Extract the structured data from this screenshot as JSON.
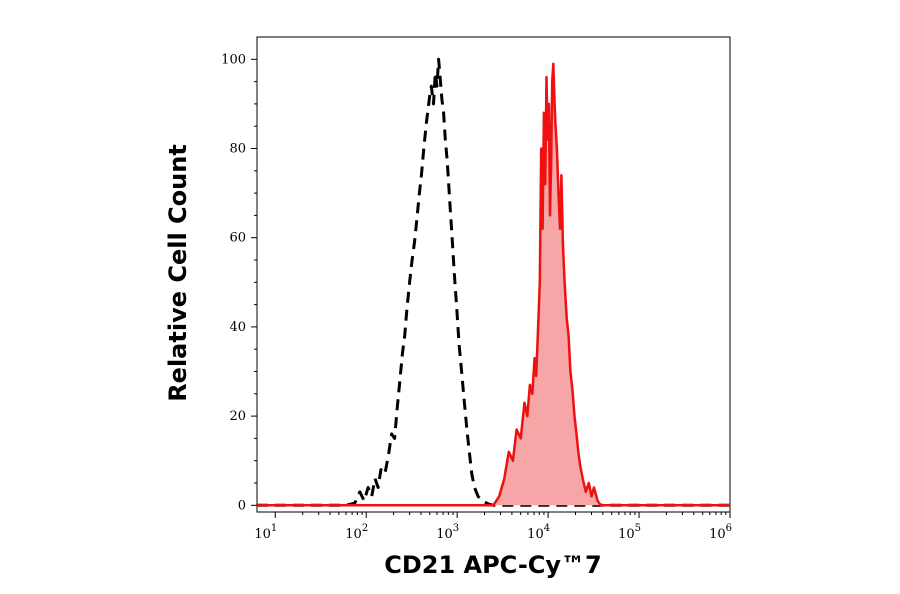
{
  "chart_data": {
    "type": "area",
    "xlabel": "CD21 APC-Cy™7",
    "ylabel": "Relative Cell Count",
    "x_scale": "log",
    "xlim": [
      6.3,
      1000000
    ],
    "ylim": [
      -1.5,
      105
    ],
    "x_ticks": [
      {
        "base": "10",
        "exp": "1",
        "value": 10
      },
      {
        "base": "10",
        "exp": "2",
        "value": 100
      },
      {
        "base": "10",
        "exp": "3",
        "value": 1000
      },
      {
        "base": "10",
        "exp": "4",
        "value": 10000
      },
      {
        "base": "10",
        "exp": "5",
        "value": 100000
      },
      {
        "base": "10",
        "exp": "6",
        "value": 1000000
      }
    ],
    "y_ticks": [
      0,
      20,
      40,
      60,
      80,
      100
    ],
    "grid": false,
    "series": [
      {
        "color": "#000000",
        "style": "dashed",
        "fill": "none",
        "points": [
          [
            6.3,
            0
          ],
          [
            60,
            0
          ],
          [
            75,
            0.5
          ],
          [
            85,
            3
          ],
          [
            95,
            1
          ],
          [
            105,
            4
          ],
          [
            115,
            2
          ],
          [
            125,
            6
          ],
          [
            135,
            4
          ],
          [
            145,
            8
          ],
          [
            160,
            7
          ],
          [
            175,
            11
          ],
          [
            190,
            16
          ],
          [
            205,
            15
          ],
          [
            220,
            22
          ],
          [
            235,
            28
          ],
          [
            250,
            34
          ],
          [
            265,
            38
          ],
          [
            280,
            44
          ],
          [
            300,
            50
          ],
          [
            320,
            55
          ],
          [
            340,
            59
          ],
          [
            360,
            64
          ],
          [
            385,
            70
          ],
          [
            405,
            74
          ],
          [
            430,
            80
          ],
          [
            460,
            86
          ],
          [
            480,
            89
          ],
          [
            500,
            92
          ],
          [
            520,
            94
          ],
          [
            550,
            90
          ],
          [
            575,
            97
          ],
          [
            600,
            94
          ],
          [
            625,
            100
          ],
          [
            650,
            96
          ],
          [
            680,
            91
          ],
          [
            710,
            88
          ],
          [
            740,
            82
          ],
          [
            780,
            77
          ],
          [
            830,
            68
          ],
          [
            880,
            60
          ],
          [
            930,
            52
          ],
          [
            990,
            44
          ],
          [
            1050,
            36
          ],
          [
            1120,
            30
          ],
          [
            1200,
            23
          ],
          [
            1280,
            17
          ],
          [
            1360,
            12
          ],
          [
            1450,
            7
          ],
          [
            1550,
            4
          ],
          [
            1700,
            2
          ],
          [
            1900,
            1
          ],
          [
            2200,
            0.3
          ],
          [
            2500,
            0
          ],
          [
            1000000,
            0
          ]
        ]
      },
      {
        "color": "#ee1111",
        "style": "solid",
        "fill": "#f6a6a6",
        "points": [
          [
            6.3,
            0
          ],
          [
            2500,
            0
          ],
          [
            2900,
            2
          ],
          [
            3300,
            6
          ],
          [
            3700,
            12
          ],
          [
            4100,
            10
          ],
          [
            4500,
            17
          ],
          [
            5000,
            15
          ],
          [
            5500,
            23
          ],
          [
            5900,
            20
          ],
          [
            6300,
            27
          ],
          [
            6700,
            25
          ],
          [
            7100,
            33
          ],
          [
            7400,
            29
          ],
          [
            7800,
            41
          ],
          [
            8100,
            50
          ],
          [
            8400,
            80
          ],
          [
            8700,
            62
          ],
          [
            9000,
            88
          ],
          [
            9300,
            72
          ],
          [
            9600,
            96
          ],
          [
            9900,
            82
          ],
          [
            10200,
            90
          ],
          [
            10500,
            65
          ],
          [
            10800,
            76
          ],
          [
            11100,
            95
          ],
          [
            11400,
            99
          ],
          [
            11700,
            92
          ],
          [
            12000,
            86
          ],
          [
            12500,
            80
          ],
          [
            13000,
            70
          ],
          [
            13500,
            62
          ],
          [
            14000,
            74
          ],
          [
            14600,
            58
          ],
          [
            15200,
            50
          ],
          [
            16000,
            42
          ],
          [
            16800,
            38
          ],
          [
            17600,
            30
          ],
          [
            18500,
            26
          ],
          [
            19500,
            20
          ],
          [
            20500,
            16
          ],
          [
            21500,
            12
          ],
          [
            22500,
            9
          ],
          [
            24000,
            6
          ],
          [
            26000,
            3
          ],
          [
            28000,
            5
          ],
          [
            30000,
            2
          ],
          [
            32000,
            4
          ],
          [
            35000,
            1
          ],
          [
            38000,
            0
          ],
          [
            1000000,
            0
          ]
        ]
      }
    ]
  }
}
